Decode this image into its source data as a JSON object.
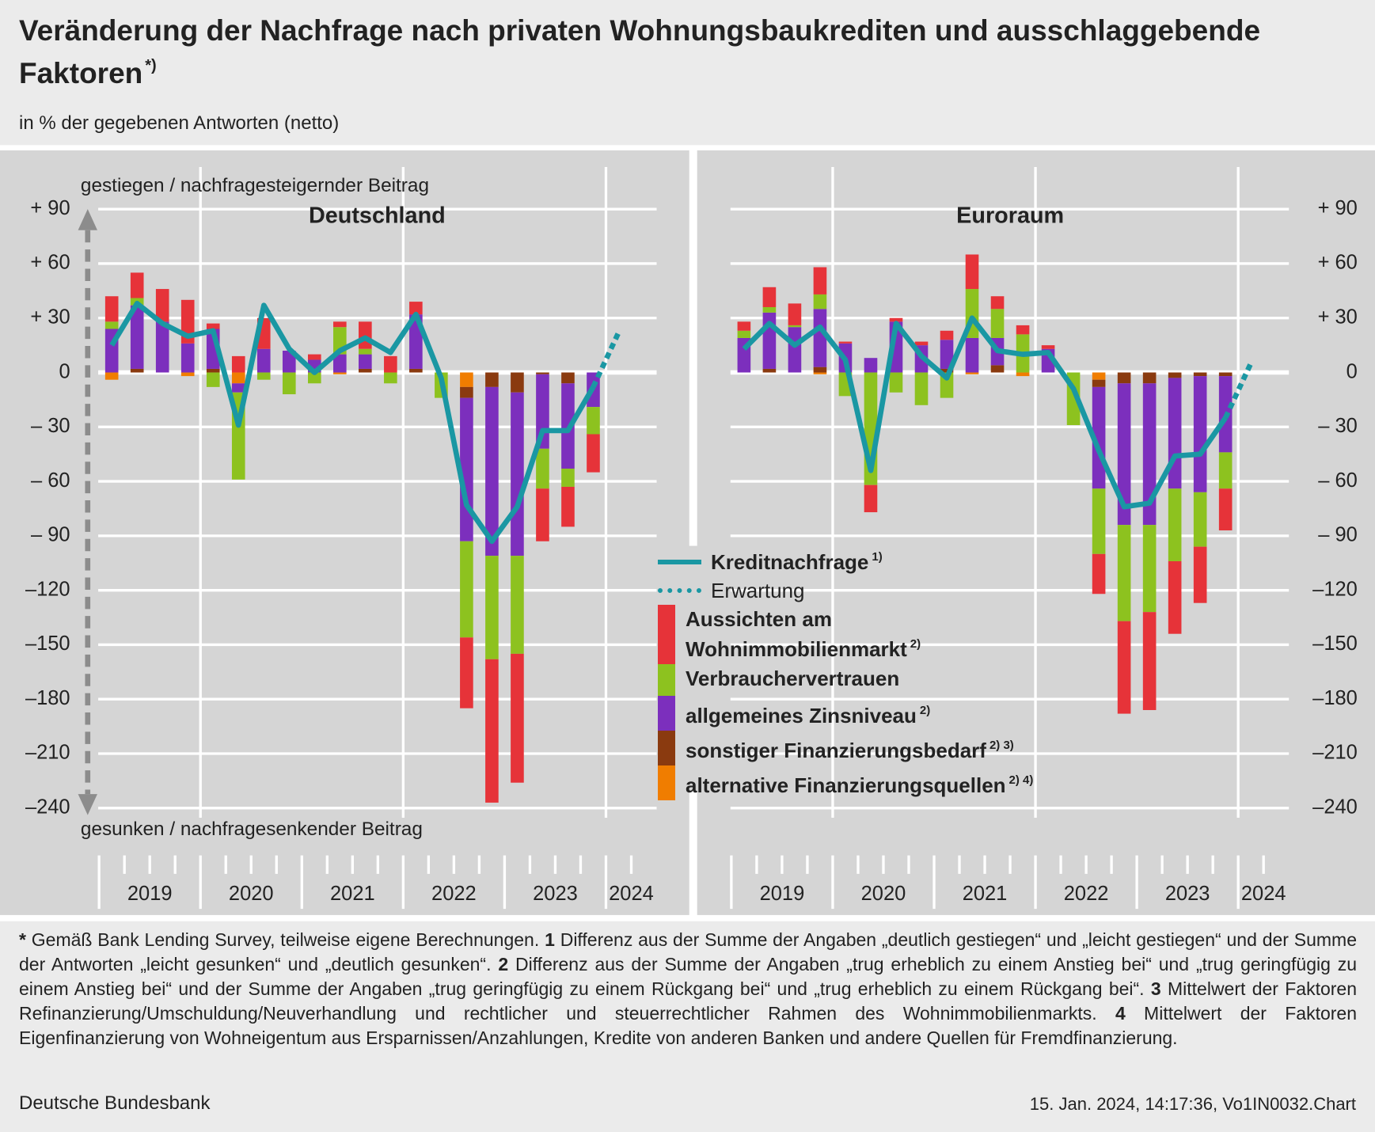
{
  "title": "Veränderung der Nachfrage nach privaten Wohnungsbaukrediten und ausschlaggebende Faktoren",
  "title_note": "*)",
  "subtitle": "in % der gegebenen Antworten (netto)",
  "chart_data": [
    {
      "type": "bar",
      "title": "Deutschland",
      "upper_label": "gestiegen / nachfragesteigernder Beitrag",
      "lower_label": "gesunken / nachfragesenkender Beitrag",
      "categories": [
        null,
        null,
        null,
        null,
        null,
        null,
        null,
        null,
        null,
        null,
        null,
        null,
        null,
        null,
        null,
        null,
        null,
        null,
        null,
        null,
        null
      ],
      "year_labels": [
        "2019",
        "2020",
        "2021",
        "2022",
        "2023",
        "2024"
      ],
      "ylim": [
        -240,
        90
      ],
      "yticks": [
        {
          "value": 90,
          "label": "+ 90"
        },
        {
          "value": 60,
          "label": "+ 60"
        },
        {
          "value": 30,
          "label": "+ 30"
        },
        0,
        {
          "value": -30,
          "label": "– 30"
        },
        {
          "value": -60,
          "label": "– 60"
        },
        {
          "value": -90,
          "label": "– 90"
        },
        {
          "value": -120,
          "label": "–120"
        },
        {
          "value": -150,
          "label": "–150"
        },
        {
          "value": -180,
          "label": "–180"
        },
        {
          "value": -210,
          "label": "–210"
        },
        {
          "value": -240,
          "label": "–240"
        }
      ],
      "grid": true,
      "stacked": true,
      "series": [
        {
          "name": "Kreditnachfrage",
          "note": "1)",
          "type": "line",
          "color": "#1a97a3",
          "values": [
            15,
            38,
            27,
            20,
            23,
            -29,
            37,
            13,
            0,
            12,
            19,
            11,
            32,
            -3,
            -73,
            -93,
            -74,
            -32,
            -32,
            -8,
            null
          ]
        },
        {
          "name": "Erwartung",
          "type": "line",
          "dashed": true,
          "color": "#1a97a3",
          "values": [
            null,
            null,
            null,
            null,
            null,
            null,
            null,
            null,
            null,
            null,
            null,
            null,
            null,
            null,
            null,
            null,
            null,
            null,
            null,
            -8,
            22
          ]
        },
        {
          "name": "Aussichten am Wohnimmobilienmarkt",
          "note": "2)",
          "type": "bar",
          "color": "#e63339",
          "values": [
            14,
            14,
            18,
            24,
            3,
            9,
            17,
            0,
            3,
            3,
            15,
            9,
            7,
            0,
            -39,
            -79,
            -71,
            -29,
            -22,
            -21,
            null
          ]
        },
        {
          "name": "Verbrauchervertrauen",
          "type": "bar",
          "color": "#8dc21f",
          "values": [
            4,
            4,
            0,
            0,
            -8,
            -48,
            -4,
            -12,
            -6,
            15,
            3,
            -6,
            0,
            -14,
            -53,
            -57,
            -54,
            -22,
            -10,
            -15,
            null
          ]
        },
        {
          "name": "allgemeines Zinsniveau",
          "note": "2)",
          "type": "bar",
          "color": "#7c2fbd",
          "values": [
            24,
            35,
            28,
            16,
            22,
            -5,
            13,
            12,
            7,
            10,
            8,
            0,
            30,
            0,
            -79,
            -93,
            -90,
            -41,
            -47,
            -19,
            null
          ]
        },
        {
          "name": "sonstiger Finanzierungsbedarf",
          "note": "2) 3)",
          "type": "bar",
          "color": "#8a3a0f",
          "values": [
            0,
            2,
            0,
            0,
            2,
            0,
            0,
            0,
            0,
            0,
            2,
            0,
            2,
            0,
            -6,
            -8,
            -11,
            -1,
            -6,
            0,
            null
          ]
        },
        {
          "name": "alternative Finanzierungsquellen",
          "note": "2) 4)",
          "type": "bar",
          "color": "#f07d00",
          "values": [
            -4,
            0,
            0,
            -2,
            0,
            -6,
            0,
            0,
            0,
            -1,
            0,
            0,
            0,
            0,
            -8,
            0,
            0,
            0,
            0,
            0,
            null
          ]
        }
      ]
    },
    {
      "type": "bar",
      "title": "Euroraum",
      "categories": [
        null,
        null,
        null,
        null,
        null,
        null,
        null,
        null,
        null,
        null,
        null,
        null,
        null,
        null,
        null,
        null,
        null,
        null,
        null,
        null,
        null
      ],
      "year_labels": [
        "2019",
        "2020",
        "2021",
        "2022",
        "2023",
        "2024"
      ],
      "ylim": [
        -240,
        90
      ],
      "yticks": [
        {
          "value": 90,
          "label": "+ 90"
        },
        {
          "value": 60,
          "label": "+ 60"
        },
        {
          "value": 30,
          "label": "+ 30"
        },
        0,
        {
          "value": -30,
          "label": "– 30"
        },
        {
          "value": -60,
          "label": "– 60"
        },
        {
          "value": -90,
          "label": "– 90"
        },
        {
          "value": -120,
          "label": "–120"
        },
        {
          "value": -150,
          "label": "–150"
        },
        {
          "value": -180,
          "label": "–180"
        },
        {
          "value": -210,
          "label": "–210"
        },
        {
          "value": -240,
          "label": "–240"
        }
      ],
      "grid": true,
      "stacked": true,
      "series": [
        {
          "type": "line",
          "values": [
            13,
            27,
            15,
            25,
            7,
            -54,
            27,
            9,
            -3,
            30,
            12,
            10,
            11,
            -9,
            -43,
            -74,
            -72,
            -46,
            -45,
            -25,
            null
          ]
        },
        {
          "type": "line",
          "values": [
            null,
            null,
            null,
            null,
            null,
            null,
            null,
            null,
            null,
            null,
            null,
            null,
            null,
            null,
            null,
            null,
            null,
            null,
            null,
            -25,
            5
          ]
        },
        {
          "type": "bar",
          "values": [
            5,
            11,
            12,
            15,
            1,
            -15,
            2,
            2,
            5,
            19,
            7,
            5,
            2,
            0,
            -22,
            -51,
            -54,
            -40,
            -31,
            -23,
            null
          ]
        },
        {
          "type": "bar",
          "values": [
            4,
            3,
            1,
            8,
            -13,
            -62,
            -11,
            -18,
            -14,
            27,
            16,
            21,
            0,
            -29,
            -36,
            -53,
            -48,
            -40,
            -30,
            -20,
            null
          ]
        },
        {
          "type": "bar",
          "values": [
            19,
            31,
            25,
            32,
            16,
            8,
            28,
            15,
            16,
            19,
            15,
            0,
            13,
            0,
            -56,
            -78,
            -78,
            -61,
            -64,
            -42,
            null
          ]
        },
        {
          "type": "bar",
          "values": [
            0,
            2,
            0,
            3,
            0,
            0,
            0,
            0,
            2,
            0,
            4,
            0,
            0,
            0,
            -4,
            -6,
            -6,
            -3,
            -2,
            -2,
            null
          ]
        },
        {
          "type": "bar",
          "values": [
            0,
            0,
            0,
            -1,
            0,
            0,
            0,
            0,
            0,
            -1,
            0,
            -2,
            0,
            0,
            -4,
            0,
            0,
            0,
            0,
            0,
            null
          ]
        }
      ]
    }
  ],
  "footnotes": [
    {
      "marker": "*",
      "text": "Gemäß Bank Lending Survey, teilweise eigene Berechnungen."
    },
    {
      "marker": "1",
      "text": "Differenz aus der Summe der Angaben „deutlich gestiegen“ und „leicht gestiegen“ und der Summe der Antworten „leicht gesunken“ und „deutlich gesunken“."
    },
    {
      "marker": "2",
      "text": "Differenz aus der Summe der Angaben „trug erheblich zu einem Anstieg bei“ und „trug geringfügig zu einem Anstieg bei“ und der Summe der Angaben „trug geringfügig zu einem Rückgang bei“ und „trug erheblich zu einem Rückgang bei“."
    },
    {
      "marker": "3",
      "text": "Mittelwert der Faktoren Refinanzierung/Umschuldung/Neuverhandlung und rechtlicher und steuerrechtlicher Rahmen des Wohnimmobilienmarkts."
    },
    {
      "marker": "4",
      "text": "Mittelwert der Faktoren Eigenfinanzierung von Wohneigentum aus Ersparnissen/Anzahlungen, Kredite von anderen Banken und andere Quellen für Fremdfinanzierung."
    }
  ],
  "source": "Deutsche Bundesbank",
  "timestamp": "15. Jan. 2024, 14:17:36, Vo1IN0032.Chart"
}
